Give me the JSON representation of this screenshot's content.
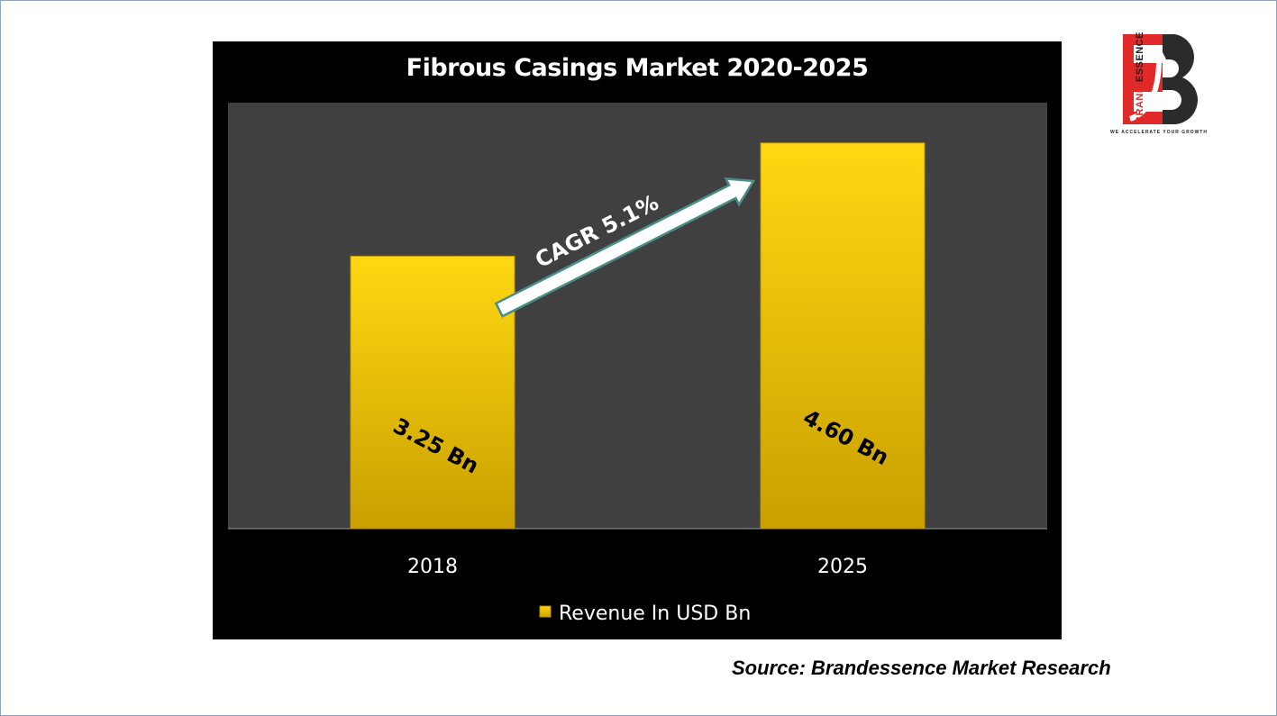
{
  "chart_data": {
    "type": "bar",
    "title": "Fibrous Casings Market 2020-2025",
    "categories": [
      "2018",
      "2025"
    ],
    "series": [
      {
        "name": "Revenue In USD Bn",
        "values": [
          3.25,
          4.6
        ]
      }
    ],
    "data_labels": [
      "3.25 Bn",
      "4.60 Bn"
    ],
    "annotation": "CAGR 5.1%",
    "ylim": [
      0,
      5.08
    ],
    "grid": false,
    "legend_position": "bottom",
    "colors": {
      "panel": "#000000",
      "plot_area": "#404040",
      "bar_top": "#ffd812",
      "bar_bottom": "#c9a000",
      "arrow_fill": "#ffffff",
      "arrow_stroke": "#4a8e8a"
    }
  },
  "logo": {
    "side_word_1": "BRAND",
    "side_word_2": "ESSENCE",
    "tagline": "WE ACCELERATE YOUR GROWTH"
  },
  "source_text": "Source: Brandessence Market Research"
}
